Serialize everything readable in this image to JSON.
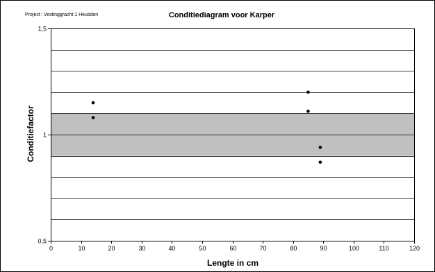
{
  "header": {
    "project_label": "Project",
    "project_value": ": Vestinggracht 1 Heusden"
  },
  "chart_data": {
    "type": "scatter",
    "title": "Conditiediagram voor Karper",
    "xlabel": "Lengte in cm",
    "ylabel": "Conditiefactor",
    "xlim": [
      0,
      120
    ],
    "ylim": [
      0.5,
      1.5
    ],
    "x_ticks": [
      0,
      10,
      20,
      30,
      40,
      50,
      60,
      70,
      80,
      90,
      100,
      110,
      120
    ],
    "y_ticks": [
      {
        "value": 0.5,
        "label": "0,5"
      },
      {
        "value": 1.0,
        "label": "1"
      },
      {
        "value": 1.5,
        "label": "1,5"
      }
    ],
    "gridlines_y": [
      0.6,
      0.7,
      0.8,
      0.9,
      1.0,
      1.1,
      1.2,
      1.3,
      1.4,
      1.5
    ],
    "shaded_band": {
      "y_from": 0.9,
      "y_to": 1.1,
      "color": "#c0c0c0"
    },
    "marker_color": "#000000",
    "points": [
      {
        "x": 14,
        "y": 1.15
      },
      {
        "x": 14,
        "y": 1.08
      },
      {
        "x": 85,
        "y": 1.2
      },
      {
        "x": 85,
        "y": 1.11
      },
      {
        "x": 89,
        "y": 0.94
      },
      {
        "x": 89,
        "y": 0.87
      }
    ]
  }
}
